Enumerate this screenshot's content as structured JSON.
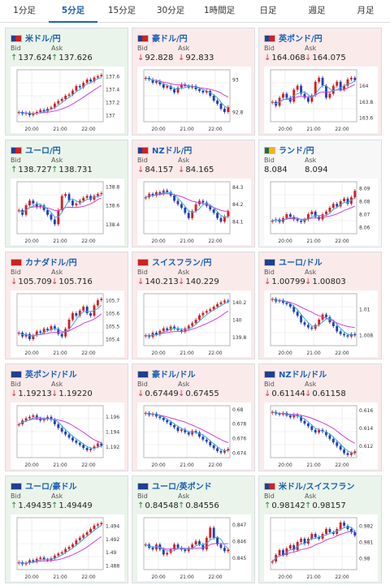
{
  "tabs": [
    {
      "label": "1分足",
      "active": false
    },
    {
      "label": "5分足",
      "active": true
    },
    {
      "label": "15分足",
      "active": false
    },
    {
      "label": "30分足",
      "active": false
    },
    {
      "label": "1時間足",
      "active": false
    },
    {
      "label": "日足",
      "active": false
    },
    {
      "label": "週足",
      "active": false
    },
    {
      "label": "月足",
      "active": false
    }
  ],
  "labels": {
    "bid": "Bid",
    "ask": "Ask"
  },
  "colors": {
    "up": "#2e8b3c",
    "down": "#d23b3b",
    "candle_up": "#d81e1e",
    "candle_down": "#1f3fb8",
    "ma_short": "#3da7e8",
    "ma_long": "#d43fd4",
    "link": "#1a5fb4"
  },
  "cards": [
    {
      "pair": "米ドル/円",
      "flag": [
        "#1e3f8f",
        "#cc2222"
      ],
      "trend": "up",
      "bid": "137.624",
      "ask": "137.626",
      "arrow": "↑",
      "chart_data": {
        "type": "candlestick",
        "x_ticks": [
          "20:00",
          "21:00",
          "22:00"
        ],
        "y_ticks": [
          "137.6",
          "137.4",
          "137.2",
          "137"
        ],
        "ylim": [
          136.9,
          137.7
        ],
        "close_path": [
          137.05,
          137.02,
          137.04,
          137.0,
          137.03,
          137.05,
          137.08,
          137.06,
          137.1,
          137.12,
          137.18,
          137.22,
          137.25,
          137.3,
          137.32,
          137.38,
          137.45,
          137.43,
          137.5,
          137.55,
          137.52,
          137.58,
          137.6,
          137.62
        ]
      }
    },
    {
      "pair": "豪ドル/円",
      "flag": [
        "#1e3f8f",
        "#cc2222"
      ],
      "trend": "down",
      "bid": "92.828",
      "ask": "92.833",
      "arrow": "↓",
      "chart_data": {
        "type": "candlestick",
        "x_ticks": [
          "20:00",
          "21:00",
          "22:00"
        ],
        "y_ticks": [
          "93",
          "92.8"
        ],
        "ylim": [
          92.74,
          93.06
        ],
        "close_path": [
          93.01,
          93.0,
          92.98,
          92.99,
          92.97,
          92.95,
          92.96,
          92.94,
          92.92,
          92.95,
          92.97,
          92.96,
          92.95,
          92.96,
          92.94,
          92.93,
          92.92,
          92.93,
          92.9,
          92.87,
          92.85,
          92.82,
          92.8,
          92.83
        ]
      }
    },
    {
      "pair": "英ポンド/円",
      "flag": [
        "#1e3f8f",
        "#cc2222"
      ],
      "trend": "down",
      "bid": "164.068",
      "ask": "164.075",
      "arrow": "↓",
      "chart_data": {
        "type": "candlestick",
        "x_ticks": [
          "20:00",
          "21:00",
          "22:00"
        ],
        "y_ticks": [
          "164",
          "163.8",
          "163.6"
        ],
        "ylim": [
          163.55,
          164.2
        ],
        "close_path": [
          163.8,
          163.75,
          163.85,
          163.9,
          163.85,
          163.8,
          163.95,
          164.0,
          163.9,
          163.85,
          163.8,
          163.88,
          164.05,
          164.1,
          164.0,
          163.85,
          163.9,
          164.0,
          164.05,
          163.95,
          164.0,
          164.08,
          164.1,
          164.07
        ]
      }
    },
    {
      "pair": "ユーロ/円",
      "flag": [
        "#1e3f8f",
        "#cc2222"
      ],
      "trend": "up",
      "bid": "138.727",
      "ask": "138.731",
      "arrow": "↑",
      "chart_data": {
        "type": "candlestick",
        "x_ticks": [
          "20:00",
          "21:00",
          "22:00"
        ],
        "y_ticks": [
          "138.8",
          "138.6",
          "138.4"
        ],
        "ylim": [
          138.3,
          138.85
        ],
        "close_path": [
          138.55,
          138.5,
          138.6,
          138.65,
          138.62,
          138.58,
          138.6,
          138.55,
          138.5,
          138.45,
          138.4,
          138.55,
          138.7,
          138.72,
          138.65,
          138.6,
          138.62,
          138.65,
          138.68,
          138.7,
          138.66,
          138.7,
          138.72,
          138.73
        ]
      }
    },
    {
      "pair": "NZドル/円",
      "flag": [
        "#1e3f8f",
        "#cc2222"
      ],
      "trend": "down",
      "bid": "84.157",
      "ask": "84.165",
      "arrow": "↓",
      "chart_data": {
        "type": "candlestick",
        "x_ticks": [
          "20:00",
          "21:00",
          "22:00"
        ],
        "y_ticks": [
          "84.3",
          "84.2",
          "84.1"
        ],
        "ylim": [
          84.03,
          84.33
        ],
        "close_path": [
          84.24,
          84.26,
          84.25,
          84.27,
          84.26,
          84.28,
          84.27,
          84.25,
          84.22,
          84.2,
          84.18,
          84.15,
          84.12,
          84.16,
          84.2,
          84.22,
          84.21,
          84.19,
          84.17,
          84.15,
          84.12,
          84.1,
          84.13,
          84.16
        ]
      }
    },
    {
      "pair": "ランド/円",
      "flag": [
        "#1e6f3f",
        "#ffb000"
      ],
      "trend": "neutral",
      "bid": "8.084",
      "ask": "8.094",
      "arrow": "",
      "chart_data": {
        "type": "candlestick",
        "x_ticks": [
          "20:00",
          "21:00",
          "22:00"
        ],
        "y_ticks": [
          "8.09",
          "8.08",
          "8.07",
          "8.06"
        ],
        "ylim": [
          8.055,
          8.095
        ],
        "close_path": [
          8.065,
          8.066,
          8.064,
          8.067,
          8.07,
          8.068,
          8.066,
          8.065,
          8.064,
          8.066,
          8.07,
          8.072,
          8.068,
          8.066,
          8.07,
          8.072,
          8.075,
          8.078,
          8.076,
          8.08,
          8.082,
          8.078,
          8.083,
          8.088
        ]
      }
    },
    {
      "pair": "カナダドル/円",
      "flag": [
        "#cc2222",
        "#cc2222"
      ],
      "trend": "down",
      "bid": "105.709",
      "ask": "105.716",
      "arrow": "↓",
      "chart_data": {
        "type": "candlestick",
        "x_ticks": [
          "20:00",
          "21:00",
          "22:00"
        ],
        "y_ticks": [
          "105.7",
          "105.6",
          "105.5",
          "105.4"
        ],
        "ylim": [
          105.35,
          105.75
        ],
        "close_path": [
          105.45,
          105.42,
          105.44,
          105.4,
          105.43,
          105.46,
          105.45,
          105.48,
          105.47,
          105.5,
          105.48,
          105.44,
          105.42,
          105.48,
          105.55,
          105.6,
          105.58,
          105.62,
          105.65,
          105.6,
          105.58,
          105.66,
          105.7,
          105.71
        ]
      }
    },
    {
      "pair": "スイスフラン/円",
      "flag": [
        "#cc2222",
        "#cc2222"
      ],
      "trend": "down",
      "bid": "140.213",
      "ask": "140.229",
      "arrow": "↓",
      "chart_data": {
        "type": "candlestick",
        "x_ticks": [
          "20:00",
          "21:00",
          "22:00"
        ],
        "y_ticks": [
          "140.2",
          "140",
          "139.8"
        ],
        "ylim": [
          139.7,
          140.3
        ],
        "close_path": [
          139.82,
          139.8,
          139.85,
          139.83,
          139.87,
          139.9,
          139.88,
          139.92,
          139.9,
          139.88,
          139.86,
          139.9,
          139.93,
          139.96,
          140.0,
          140.05,
          140.08,
          140.1,
          140.12,
          140.15,
          140.18,
          140.2,
          140.22,
          140.21
        ]
      }
    },
    {
      "pair": "ユーロ/ドル",
      "flag": [
        "#1e3f8f",
        "#1e3f8f"
      ],
      "trend": "down",
      "bid": "1.00799",
      "ask": "1.00803",
      "arrow": "↓",
      "chart_data": {
        "type": "candlestick",
        "x_ticks": [
          "20:00",
          "21:00",
          "22:00"
        ],
        "y_ticks": [
          "1.01",
          "1.008"
        ],
        "ylim": [
          1.0072,
          1.0112
        ],
        "close_path": [
          1.0108,
          1.0106,
          1.0107,
          1.0105,
          1.0104,
          1.0102,
          1.0098,
          1.0095,
          1.009,
          1.0088,
          1.0086,
          1.0085,
          1.0088,
          1.0092,
          1.0096,
          1.0094,
          1.009,
          1.0087,
          1.0083,
          1.0081,
          1.008,
          1.0079,
          1.0081,
          1.008
        ]
      }
    },
    {
      "pair": "英ポンド/ドル",
      "flag": [
        "#1e3f8f",
        "#1e3f8f"
      ],
      "trend": "down",
      "bid": "1.19213",
      "ask": "1.19220",
      "arrow": "↓",
      "chart_data": {
        "type": "candlestick",
        "x_ticks": [
          "20:00",
          "21:00",
          "22:00"
        ],
        "y_ticks": [
          "1.196",
          "1.194",
          "1.192"
        ],
        "ylim": [
          1.1905,
          1.1975
        ],
        "close_path": [
          1.195,
          1.1955,
          1.1958,
          1.196,
          1.1962,
          1.1958,
          1.1955,
          1.1957,
          1.196,
          1.1956,
          1.195,
          1.1945,
          1.194,
          1.1936,
          1.1932,
          1.1928,
          1.1925,
          1.1922,
          1.1918,
          1.1915,
          1.1917,
          1.192,
          1.1924,
          1.1921
        ]
      }
    },
    {
      "pair": "豪ドル/ドル",
      "flag": [
        "#1e3f8f",
        "#1e3f8f"
      ],
      "trend": "down",
      "bid": "0.67449",
      "ask": "0.67455",
      "arrow": "↓",
      "chart_data": {
        "type": "candlestick",
        "x_ticks": [
          "20:00",
          "21:00",
          "22:00"
        ],
        "y_ticks": [
          "0.68",
          "0.678",
          "0.676",
          "0.674"
        ],
        "ylim": [
          0.6733,
          0.6805
        ],
        "close_path": [
          0.6795,
          0.6792,
          0.6794,
          0.679,
          0.6788,
          0.6785,
          0.6782,
          0.6778,
          0.6775,
          0.677,
          0.6772,
          0.6768,
          0.6765,
          0.677,
          0.6768,
          0.6762,
          0.6758,
          0.6755,
          0.675,
          0.6746,
          0.6742,
          0.674,
          0.6743,
          0.6745
        ]
      }
    },
    {
      "pair": "NZドル/ドル",
      "flag": [
        "#1e3f8f",
        "#1e3f8f"
      ],
      "trend": "down",
      "bid": "0.61144",
      "ask": "0.61158",
      "arrow": "↓",
      "chart_data": {
        "type": "candlestick",
        "x_ticks": [
          "20:00",
          "21:00",
          "22:00"
        ],
        "y_ticks": [
          "0.616",
          "0.614",
          "0.612"
        ],
        "ylim": [
          0.6107,
          0.6165
        ],
        "close_path": [
          0.6158,
          0.6156,
          0.6155,
          0.6157,
          0.6154,
          0.6152,
          0.6155,
          0.6153,
          0.6148,
          0.6145,
          0.6142,
          0.6138,
          0.6135,
          0.6138,
          0.6136,
          0.6132,
          0.6128,
          0.6124,
          0.612,
          0.6116,
          0.6112,
          0.611,
          0.6112,
          0.6114
        ]
      }
    },
    {
      "pair": "ユーロ/豪ドル",
      "flag": [
        "#1e3f8f",
        "#1e3f8f"
      ],
      "trend": "up",
      "bid": "1.49435",
      "ask": "1.49449",
      "arrow": "↑",
      "chart_data": {
        "type": "candlestick",
        "x_ticks": [
          "20:00",
          "21:00",
          "22:00"
        ],
        "y_ticks": [
          "1.494",
          "1.492",
          "1.49",
          "1.488"
        ],
        "ylim": [
          1.4874,
          1.4952
        ],
        "close_path": [
          1.4885,
          1.4882,
          1.4884,
          1.4888,
          1.4886,
          1.489,
          1.4892,
          1.4889,
          1.4888,
          1.4891,
          1.4895,
          1.4898,
          1.49,
          1.4905,
          1.4908,
          1.4912,
          1.4918,
          1.4922,
          1.4926,
          1.493,
          1.4935,
          1.494,
          1.4942,
          1.4944
        ]
      }
    },
    {
      "pair": "ユーロ/英ポンド",
      "flag": [
        "#1e3f8f",
        "#1e3f8f"
      ],
      "trend": "up",
      "bid": "0.84548",
      "ask": "0.84556",
      "arrow": "↑",
      "chart_data": {
        "type": "candlestick",
        "x_ticks": [
          "20:00",
          "21:00",
          "22:00"
        ],
        "y_ticks": [
          "0.847",
          "0.846",
          "0.845"
        ],
        "ylim": [
          0.8443,
          0.8474
        ],
        "close_path": [
          0.8458,
          0.8456,
          0.8455,
          0.8458,
          0.8455,
          0.8452,
          0.8453,
          0.8455,
          0.8458,
          0.8456,
          0.8455,
          0.8454,
          0.8456,
          0.8458,
          0.846,
          0.8458,
          0.8455,
          0.8462,
          0.8468,
          0.8462,
          0.8458,
          0.8456,
          0.8454,
          0.8455
        ]
      }
    },
    {
      "pair": "米ドル/スイスフラン",
      "flag": [
        "#1e3f8f",
        "#cc2222"
      ],
      "trend": "up",
      "bid": "0.98142",
      "ask": "0.98157",
      "arrow": "↑",
      "chart_data": {
        "type": "candlestick",
        "x_ticks": [
          "20:00",
          "21:00",
          "22:00"
        ],
        "y_ticks": [
          "0.982",
          "0.981",
          "0.98"
        ],
        "ylim": [
          0.9793,
          0.9825
        ],
        "close_path": [
          0.9798,
          0.9802,
          0.9805,
          0.9802,
          0.9806,
          0.9808,
          0.9805,
          0.981,
          0.9812,
          0.9809,
          0.9812,
          0.9815,
          0.9813,
          0.9812,
          0.9815,
          0.9818,
          0.9816,
          0.9815,
          0.9818,
          0.9822,
          0.982,
          0.9818,
          0.9816,
          0.9814
        ]
      }
    }
  ]
}
